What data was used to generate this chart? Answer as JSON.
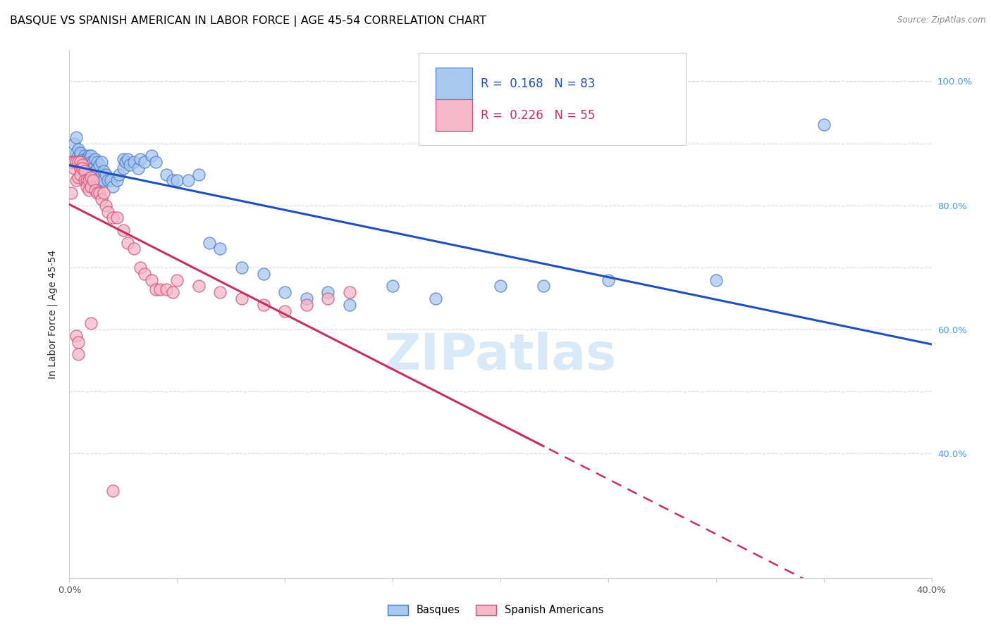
{
  "title": "BASQUE VS SPANISH AMERICAN IN LABOR FORCE | AGE 45-54 CORRELATION CHART",
  "source": "Source: ZipAtlas.com",
  "ylabel": "In Labor Force | Age 45-54",
  "xlim": [
    0.0,
    0.4
  ],
  "ylim": [
    0.2,
    1.05
  ],
  "xtick_positions": [
    0.0,
    0.05,
    0.1,
    0.15,
    0.2,
    0.25,
    0.3,
    0.35,
    0.4
  ],
  "xtick_labels": [
    "0.0%",
    "",
    "",
    "",
    "",
    "",
    "",
    "",
    "40.0%"
  ],
  "ytick_positions": [
    0.4,
    0.5,
    0.6,
    0.7,
    0.8,
    0.9,
    1.0
  ],
  "ytick_labels_right": [
    "40.0%",
    "",
    "60.0%",
    "",
    "80.0%",
    "",
    "100.0%"
  ],
  "R_blue": 0.168,
  "N_blue": 83,
  "R_pink": 0.226,
  "N_pink": 55,
  "blue_color": "#a8c8f0",
  "pink_color": "#f5b8c8",
  "blue_edge_color": "#4878c8",
  "pink_edge_color": "#d84878",
  "blue_line_color": "#2050c0",
  "pink_line_color": "#c83060",
  "watermark_color": "#d8eaf8",
  "grid_color": "#d8d8d8",
  "right_tick_color": "#4499ff",
  "blue_x": [
    0.001,
    0.002,
    0.002,
    0.003,
    0.003,
    0.003,
    0.004,
    0.004,
    0.004,
    0.004,
    0.005,
    0.005,
    0.005,
    0.005,
    0.005,
    0.006,
    0.006,
    0.006,
    0.006,
    0.007,
    0.007,
    0.007,
    0.007,
    0.008,
    0.008,
    0.008,
    0.008,
    0.009,
    0.009,
    0.009,
    0.01,
    0.01,
    0.01,
    0.01,
    0.011,
    0.011,
    0.012,
    0.012,
    0.013,
    0.013,
    0.014,
    0.014,
    0.015,
    0.015,
    0.016,
    0.016,
    0.017,
    0.018,
    0.019,
    0.02,
    0.022,
    0.023,
    0.025,
    0.025,
    0.026,
    0.027,
    0.028,
    0.03,
    0.032,
    0.033,
    0.035,
    0.038,
    0.04,
    0.045,
    0.048,
    0.05,
    0.055,
    0.06,
    0.065,
    0.07,
    0.08,
    0.09,
    0.1,
    0.11,
    0.12,
    0.13,
    0.15,
    0.17,
    0.2,
    0.22,
    0.25,
    0.3,
    0.35
  ],
  "blue_y": [
    0.87,
    0.87,
    0.9,
    0.87,
    0.885,
    0.91,
    0.87,
    0.88,
    0.89,
    0.87,
    0.87,
    0.875,
    0.88,
    0.885,
    0.86,
    0.875,
    0.87,
    0.865,
    0.86,
    0.88,
    0.875,
    0.86,
    0.87,
    0.875,
    0.87,
    0.865,
    0.86,
    0.88,
    0.875,
    0.865,
    0.88,
    0.87,
    0.86,
    0.85,
    0.87,
    0.86,
    0.875,
    0.855,
    0.87,
    0.86,
    0.865,
    0.84,
    0.87,
    0.85,
    0.855,
    0.84,
    0.85,
    0.84,
    0.84,
    0.83,
    0.84,
    0.85,
    0.86,
    0.875,
    0.87,
    0.875,
    0.865,
    0.87,
    0.86,
    0.875,
    0.87,
    0.88,
    0.87,
    0.85,
    0.84,
    0.84,
    0.84,
    0.85,
    0.74,
    0.73,
    0.7,
    0.69,
    0.66,
    0.65,
    0.66,
    0.64,
    0.67,
    0.65,
    0.67,
    0.67,
    0.68,
    0.68,
    0.93
  ],
  "pink_x": [
    0.001,
    0.001,
    0.002,
    0.002,
    0.003,
    0.003,
    0.004,
    0.004,
    0.005,
    0.005,
    0.005,
    0.006,
    0.006,
    0.007,
    0.007,
    0.008,
    0.008,
    0.009,
    0.009,
    0.01,
    0.01,
    0.011,
    0.012,
    0.013,
    0.014,
    0.015,
    0.016,
    0.017,
    0.018,
    0.02,
    0.022,
    0.025,
    0.027,
    0.03,
    0.033,
    0.035,
    0.038,
    0.04,
    0.042,
    0.045,
    0.048,
    0.05,
    0.06,
    0.07,
    0.08,
    0.09,
    0.1,
    0.11,
    0.12,
    0.13,
    0.003,
    0.004,
    0.004,
    0.01,
    0.02
  ],
  "pink_y": [
    0.82,
    0.87,
    0.87,
    0.86,
    0.87,
    0.84,
    0.87,
    0.845,
    0.87,
    0.86,
    0.85,
    0.865,
    0.86,
    0.855,
    0.84,
    0.84,
    0.83,
    0.84,
    0.825,
    0.845,
    0.83,
    0.84,
    0.825,
    0.82,
    0.82,
    0.81,
    0.82,
    0.8,
    0.79,
    0.78,
    0.78,
    0.76,
    0.74,
    0.73,
    0.7,
    0.69,
    0.68,
    0.665,
    0.665,
    0.665,
    0.66,
    0.68,
    0.67,
    0.66,
    0.65,
    0.64,
    0.63,
    0.64,
    0.65,
    0.66,
    0.59,
    0.58,
    0.56,
    0.61,
    0.34
  ],
  "title_fontsize": 11.5,
  "axis_label_fontsize": 10,
  "tick_fontsize": 9.5,
  "legend_fontsize": 12
}
